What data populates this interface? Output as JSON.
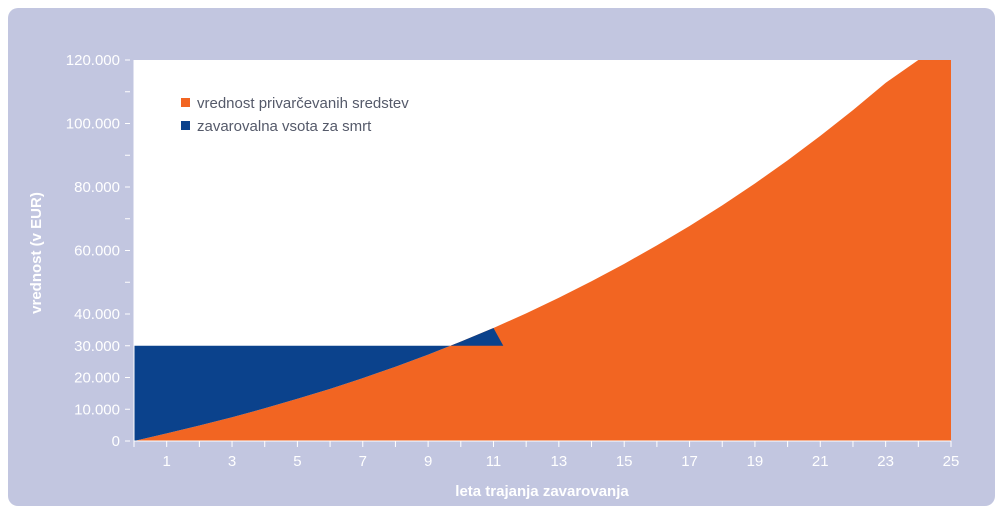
{
  "chart_data": {
    "type": "area",
    "xlabel": "leta trajanja zavarovanja",
    "ylabel": "vrednost (v EUR)",
    "xlim": [
      0,
      25
    ],
    "ylim": [
      0,
      120000
    ],
    "x_tick_labels": [
      "1",
      "3",
      "5",
      "7",
      "9",
      "11",
      "13",
      "15",
      "17",
      "19",
      "21",
      "23",
      "25"
    ],
    "y_tick_labels": [
      "0",
      "10.000",
      "20.000",
      "30.000",
      "40.000",
      "60.000",
      "80.000",
      "100.000",
      "120.000"
    ],
    "legend_position": "top-left",
    "grid": false,
    "series": [
      {
        "name": "vrednost privarčevanih sredstev",
        "color": "#f26522",
        "x": [
          0,
          1,
          2,
          3,
          4,
          5,
          6,
          7,
          8,
          9,
          10,
          11,
          12,
          13,
          14,
          15,
          16,
          17,
          18,
          19,
          20,
          21,
          22,
          23,
          24,
          25
        ],
        "values": [
          0,
          2400,
          4900,
          7500,
          10300,
          13300,
          16400,
          19800,
          23400,
          27200,
          31300,
          35600,
          40200,
          45100,
          50300,
          55800,
          61600,
          67700,
          74200,
          81100,
          88400,
          96100,
          104200,
          112800,
          121000,
          130000
        ]
      },
      {
        "name": "zavarovalna vsota za smrt",
        "color": "#0b428c",
        "x": [
          0,
          11.3
        ],
        "values": [
          30000,
          30000
        ]
      }
    ]
  }
}
